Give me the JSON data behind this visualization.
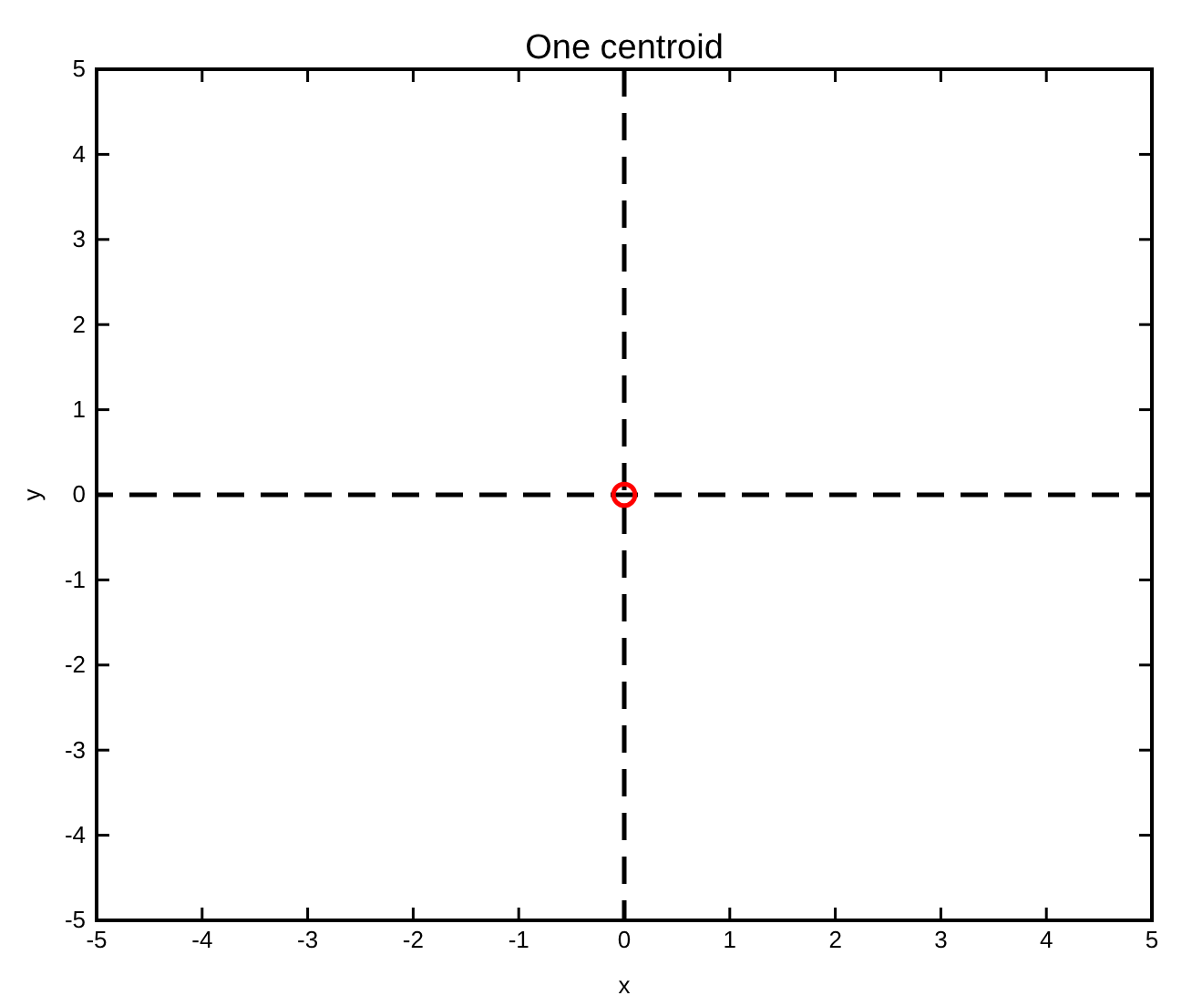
{
  "chart_data": {
    "type": "scatter",
    "title": "One centroid",
    "xlabel": "x",
    "ylabel": "y",
    "x": [
      0
    ],
    "values": [
      0
    ],
    "color": "#ff0000",
    "marker": "circle",
    "xlim": [
      -5,
      5
    ],
    "ylim": [
      -5,
      5
    ],
    "xticks": [
      -5,
      -4,
      -3,
      -2,
      -1,
      0,
      1,
      2,
      3,
      4,
      5
    ],
    "yticks": [
      -5,
      -4,
      -3,
      -2,
      -1,
      0,
      1,
      2,
      3,
      4,
      5
    ],
    "ref_lines": [
      {
        "axis": "x",
        "value": 0,
        "color": "#000000",
        "line_style": "dashed"
      },
      {
        "axis": "y",
        "value": 0,
        "color": "#000000",
        "line_style": "dashed"
      }
    ]
  }
}
